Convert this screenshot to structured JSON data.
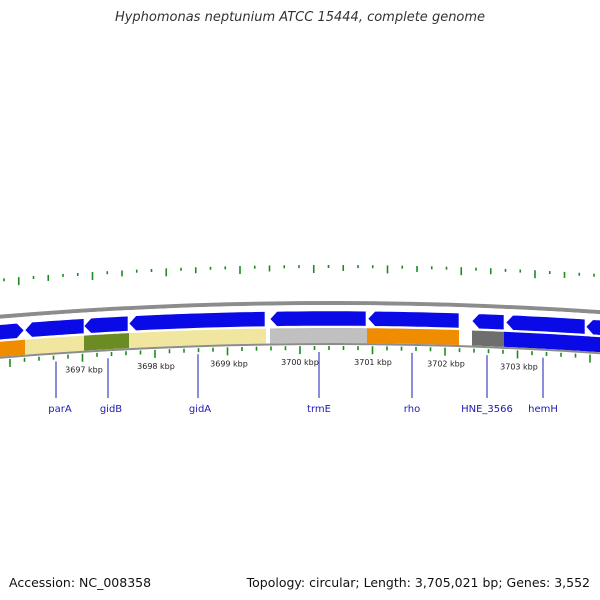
{
  "title": "Hyphomonas neptunium ATCC 15444, complete genome",
  "footer": {
    "accession": "Accession: NC_008358",
    "summary": "Topology: circular; Length: 3,705,021 bp; Genes: 3,552"
  },
  "colors": {
    "cds_arrow": "#0a0ae6",
    "tick": "#1e8a1e",
    "backbone": "#8c8c8c",
    "gene_label": "#1a1ab4"
  },
  "scale_labels": [
    "3697 kbp",
    "3698 kbp",
    "3699 kbp",
    "3700 kbp",
    "3701 kbp",
    "3702 kbp",
    "3703 kbp"
  ],
  "gene_labels": [
    "parA",
    "gidB",
    "gidA",
    "trmE",
    "rho",
    "HNE_3566",
    "hemH"
  ],
  "feature_colors": [
    "#f08c00",
    "#f0e6a0",
    "#6b8c23",
    "#f0e6a0",
    "#c0c0c0",
    "#f08c00",
    "#6e6e6e",
    "#0a0ae6",
    "#0a0ae6"
  ]
}
